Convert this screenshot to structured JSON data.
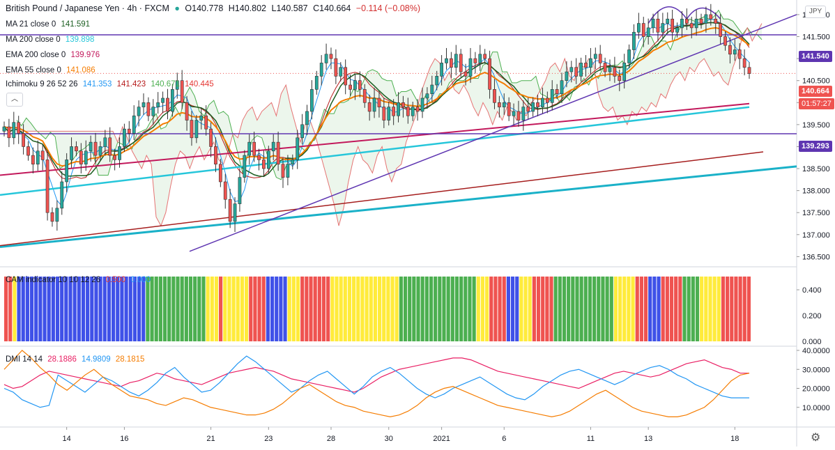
{
  "header": {
    "symbol": "British Pound / Japanese Yen · 4h · FXCM",
    "ohlc": {
      "o": "O140.778",
      "h": "H140.802",
      "l": "L140.587",
      "c": "C140.664",
      "chg": "−0.114 (−0.08%)"
    }
  },
  "indicators": [
    {
      "label": "MA 21 close 0",
      "value": "141.591",
      "color": "#1b5e20"
    },
    {
      "label": "MA 200 close 0",
      "value": "139.898",
      "color": "#4dd0e1"
    },
    {
      "label": "EMA 200 close 0",
      "value": "139.976",
      "color": "#c2185b"
    },
    {
      "label": "EMA 55 close 0",
      "value": "141.086",
      "color": "#f57c00"
    }
  ],
  "ichimoku": {
    "label": "Ichimoku 9 26 52 26",
    "values": [
      "141.353",
      "141.423",
      "140.671",
      "140.445"
    ],
    "colors": [
      "#2196f3",
      "#b71c1c",
      "#4caf50",
      "#e53935"
    ]
  },
  "cam": {
    "label": "CAM indicator 10 10 12 26",
    "values": [
      "0.500",
      "0.000"
    ],
    "colors": [
      "#e53935",
      "#2196f3"
    ]
  },
  "dmi": {
    "label": "DMI 14 14",
    "values": [
      "28.1886",
      "14.9809",
      "28.1815"
    ],
    "colors": [
      "#e91e63",
      "#2196f3",
      "#f57c00"
    ]
  },
  "unit_label": "JPY",
  "collapse_icon": "chevron-up-icon",
  "settings_icon": "gear-icon",
  "price_badges": {
    "upper_line": "141.540",
    "last": "140.664",
    "timer": "01:57:27",
    "lower_line": "139.293"
  },
  "colors": {
    "up": "#26a69a",
    "down": "#ef5350",
    "trend": "#5e35b1",
    "ma200": "#26c6da",
    "ema200": "#c2185b",
    "ema55": "#f57c00",
    "ma21": "#1b5e20"
  },
  "chart_data": [
    {
      "type": "candlestick",
      "title": "British Pound / Japanese Yen · 4h · FXCM",
      "ylabel": "JPY",
      "ylim": [
        136.3,
        142.3
      ],
      "y_ticks": [
        "142.000",
        "141.500",
        "141.000",
        "140.500",
        "140.000",
        "139.500",
        "139.000",
        "138.500",
        "138.000",
        "137.500",
        "137.000",
        "136.500"
      ],
      "x_ticks": [
        "14",
        "16",
        "21",
        "23",
        "28",
        "30",
        "2021",
        "6",
        "11",
        "13",
        "18"
      ],
      "close": [
        139.45,
        139.2,
        139.55,
        139.3,
        139.0,
        138.8,
        138.6,
        138.9,
        138.7,
        137.5,
        137.3,
        137.6,
        138.2,
        138.7,
        139.0,
        138.9,
        138.6,
        138.9,
        139.1,
        138.8,
        139.0,
        139.2,
        138.8,
        138.7,
        139.0,
        139.4,
        139.3,
        139.7,
        139.9,
        140.0,
        139.7,
        139.9,
        140.0,
        140.1,
        139.8,
        140.3,
        140.5,
        140.0,
        139.6,
        139.2,
        139.6,
        139.7,
        139.4,
        139.0,
        138.6,
        138.2,
        137.8,
        137.3,
        137.7,
        138.3,
        138.8,
        139.1,
        138.8,
        138.7,
        138.5,
        138.9,
        139.1,
        138.6,
        138.3,
        138.6,
        138.7,
        139.2,
        139.5,
        139.8,
        140.3,
        140.6,
        140.9,
        141.1,
        141.0,
        140.6,
        140.8,
        140.4,
        140.3,
        140.5,
        140.3,
        140.0,
        139.8,
        140.1,
        139.9,
        139.6,
        139.9,
        139.7,
        140.0,
        139.9,
        139.7,
        139.9,
        139.8,
        140.1,
        140.2,
        140.4,
        140.6,
        140.9,
        141.0,
        140.8,
        141.1,
        140.7,
        140.6,
        141.0,
        140.9,
        141.1,
        141.0,
        140.3,
        140.0,
        139.9,
        140.0,
        139.7,
        139.8,
        139.6,
        139.9,
        139.8,
        140.0,
        139.9,
        140.1,
        140.0,
        140.3,
        140.2,
        140.5,
        140.7,
        140.8,
        140.6,
        140.9,
        140.8,
        141.0,
        141.1,
        140.9,
        140.7,
        140.8,
        140.6,
        140.5,
        140.9,
        141.2,
        141.6,
        141.8,
        141.5,
        141.7,
        141.9,
        141.6,
        141.8,
        141.9,
        141.6,
        141.7,
        141.9,
        141.8,
        141.7,
        141.9,
        141.8,
        142.0,
        141.9,
        141.8,
        141.5,
        141.3,
        141.1,
        141.2,
        141.0,
        140.8,
        140.66
      ],
      "series": [
        {
          "name": "MA 21 close 0",
          "last": 141.591
        },
        {
          "name": "MA 200 close 0",
          "last": 139.898
        },
        {
          "name": "EMA 200 close 0",
          "last": 139.976
        },
        {
          "name": "EMA 55 close 0",
          "last": 141.086
        }
      ],
      "horizontal_lines": [
        141.54,
        139.293
      ],
      "last_price": 140.664
    },
    {
      "type": "bar",
      "title": "CAM indicator 10 10 12 26",
      "ylim": [
        0,
        0.5
      ],
      "y_ticks": [
        "0.400",
        "0.200",
        "0.000"
      ],
      "colors_sequence": "RRYBBBBBBBBBBBBBBBBBBBBBBBBBBBBBBGGGGGGGGGGGGGGYYYRYYYYYYRRRRBBBBBYYYRRRRRRRYYYYYYYYYYYYYYYYGGGGGGGGGGGGGGGGGGYYYRRRRBBBYYYRRRRRGGGGGGGGGGGGGGYYYYYRRRBBBRRRRRGGGGYYYYYRRRRRRR",
      "values_note": "all bars at 0.500"
    },
    {
      "type": "line",
      "title": "DMI 14 14",
      "ylim": [
        0,
        40
      ],
      "y_ticks": [
        "40.0000",
        "30.0000",
        "20.0000",
        "10.0000"
      ],
      "series": [
        {
          "name": "ADX",
          "values": [
            22,
            20,
            21,
            24,
            27,
            29,
            28,
            27,
            26,
            25,
            24,
            23,
            22,
            21,
            23,
            24,
            26,
            28,
            27,
            25,
            24,
            23,
            22,
            24,
            26,
            28,
            29,
            30,
            31,
            30,
            29,
            27,
            25,
            24,
            23,
            22,
            21,
            20,
            19,
            18,
            20,
            23,
            26,
            28,
            30,
            31,
            32,
            33,
            34,
            35,
            36,
            36,
            35,
            33,
            31,
            29,
            28,
            27,
            26,
            25,
            24,
            23,
            22,
            21,
            20,
            22,
            24,
            26,
            28,
            29,
            28,
            27,
            26,
            27,
            29,
            31,
            33,
            34,
            35,
            33,
            31,
            30,
            28,
            28
          ]
        },
        {
          "name": "+DI",
          "values": [
            20,
            18,
            14,
            12,
            10,
            11,
            27,
            24,
            21,
            18,
            22,
            26,
            24,
            21,
            18,
            16,
            19,
            23,
            28,
            31,
            26,
            22,
            18,
            19,
            23,
            28,
            33,
            37,
            34,
            30,
            26,
            22,
            18,
            20,
            24,
            27,
            29,
            25,
            21,
            17,
            21,
            26,
            29,
            31,
            28,
            24,
            20,
            17,
            15,
            17,
            20,
            22,
            24,
            26,
            23,
            20,
            17,
            15,
            14,
            17,
            21,
            24,
            27,
            29,
            30,
            28,
            26,
            24,
            22,
            24,
            27,
            29,
            31,
            32,
            30,
            27,
            25,
            22,
            20,
            18,
            16,
            15,
            15,
            15
          ]
        },
        {
          "name": "-DI",
          "values": [
            30,
            35,
            40,
            36,
            31,
            27,
            22,
            19,
            23,
            27,
            30,
            26,
            22,
            19,
            16,
            15,
            14,
            12,
            11,
            13,
            15,
            14,
            12,
            10,
            9,
            8,
            7,
            6,
            6,
            7,
            9,
            12,
            16,
            20,
            22,
            19,
            16,
            13,
            11,
            10,
            8,
            7,
            6,
            5,
            6,
            8,
            11,
            15,
            18,
            20,
            21,
            19,
            17,
            15,
            13,
            11,
            10,
            9,
            8,
            7,
            6,
            5,
            6,
            8,
            11,
            14,
            17,
            19,
            16,
            13,
            10,
            8,
            7,
            6,
            5,
            5,
            6,
            8,
            10,
            14,
            19,
            24,
            27,
            28
          ]
        }
      ],
      "last_values": [
        28.1886,
        14.9809,
        28.1815
      ]
    }
  ]
}
